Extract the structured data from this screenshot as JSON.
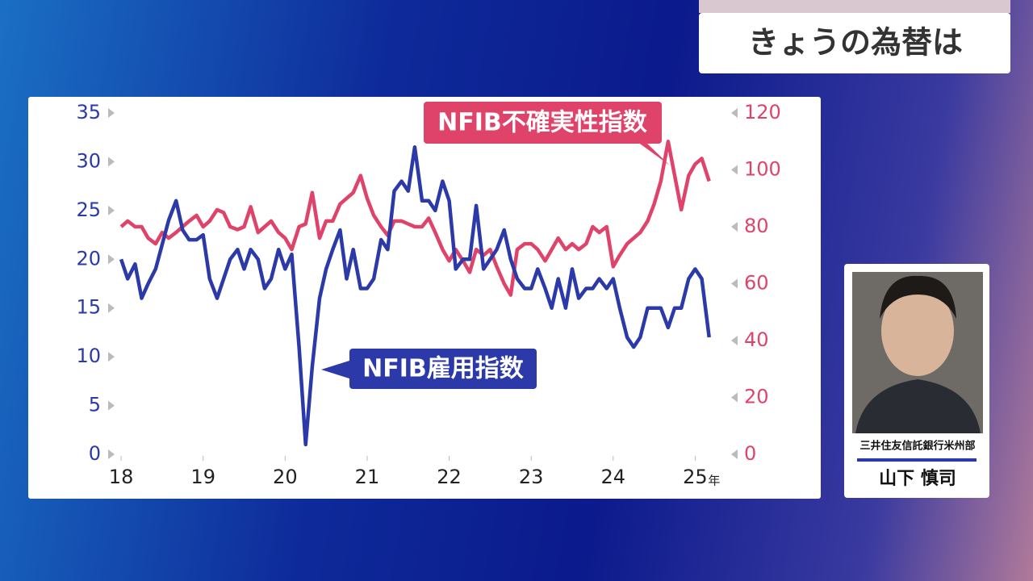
{
  "header": {
    "title": "きょうの為替は"
  },
  "guest": {
    "affiliation": "三井住友信託銀行米州部",
    "name": "山下 慎司"
  },
  "chart_data": {
    "type": "line",
    "x": [
      18,
      18.08,
      18.17,
      18.25,
      18.33,
      18.42,
      18.5,
      18.58,
      18.67,
      18.75,
      18.83,
      18.92,
      19,
      19.08,
      19.17,
      19.25,
      19.33,
      19.42,
      19.5,
      19.58,
      19.67,
      19.75,
      19.83,
      19.92,
      20,
      20.08,
      20.17,
      20.25,
      20.33,
      20.42,
      20.5,
      20.58,
      20.67,
      20.75,
      20.83,
      20.92,
      21,
      21.08,
      21.17,
      21.25,
      21.33,
      21.42,
      21.5,
      21.58,
      21.67,
      21.75,
      21.83,
      21.92,
      22,
      22.08,
      22.17,
      22.25,
      22.33,
      22.42,
      22.5,
      22.58,
      22.67,
      22.75,
      22.83,
      22.92,
      23,
      23.08,
      23.17,
      23.25,
      23.33,
      23.42,
      23.5,
      23.58,
      23.67,
      23.75,
      23.83,
      23.92,
      24,
      24.08,
      24.17,
      24.25,
      24.33,
      24.42,
      24.5,
      24.58,
      24.67,
      24.75,
      24.83,
      24.92,
      25,
      25.08,
      25.17
    ],
    "series": [
      {
        "name": "NFIB雇用指数",
        "color": "#2b3aa8",
        "values": [
          20,
          18,
          19.5,
          16,
          17.5,
          19,
          21.5,
          24,
          26,
          23,
          22,
          22,
          22.5,
          18,
          16,
          18,
          20,
          21,
          19,
          21,
          20,
          17,
          18,
          21,
          19,
          20.5,
          11,
          1,
          9,
          16,
          19,
          21,
          23,
          18,
          21,
          17,
          17,
          18,
          22,
          21,
          27,
          28,
          27,
          31.5,
          26,
          26,
          25,
          28,
          26,
          19,
          20,
          20,
          25.5,
          19,
          20,
          21,
          23,
          20,
          18,
          17,
          17,
          19,
          17,
          15,
          18,
          15,
          19,
          16,
          17,
          17,
          18,
          17,
          18,
          15,
          12,
          11,
          12,
          15,
          15,
          15,
          13,
          15,
          15,
          18,
          19,
          18,
          12
        ]
      },
      {
        "name": "NFIB不確実性指数",
        "color": "#e0436a",
        "axis": "y2",
        "values": [
          80,
          82,
          80,
          80,
          76,
          74,
          78,
          76,
          78,
          80,
          82,
          84,
          80,
          82,
          86,
          85,
          80,
          79,
          80,
          87,
          78,
          80,
          82,
          78,
          76,
          72,
          80,
          81,
          92,
          76,
          82,
          82,
          88,
          90,
          92,
          98,
          90,
          84,
          80,
          77,
          82,
          82,
          81,
          80,
          80,
          83,
          78,
          72,
          68,
          72,
          68,
          64,
          72,
          70,
          72,
          66,
          60,
          56,
          72,
          74,
          74,
          72,
          68,
          72,
          76,
          72,
          74,
          72,
          74,
          80,
          78,
          80,
          66,
          70,
          74,
          76,
          78,
          82,
          88,
          96,
          110,
          98,
          86,
          98,
          102,
          104,
          96
        ]
      }
    ],
    "xlim": [
      17.95,
      25.35
    ],
    "xticks": [
      18,
      19,
      20,
      21,
      22,
      23,
      24,
      25
    ],
    "x_unit": "年",
    "ylim": [
      0,
      35
    ],
    "yticks": [
      0,
      5,
      10,
      15,
      20,
      25,
      30,
      35
    ],
    "y2lim": [
      0,
      120
    ],
    "y2ticks": [
      0,
      20,
      40,
      60,
      80,
      100,
      120
    ]
  }
}
